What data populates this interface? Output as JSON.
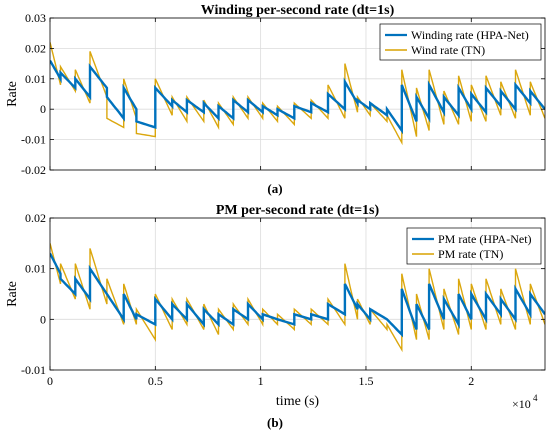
{
  "chart_data": [
    {
      "type": "line",
      "panel_caption": "(a)",
      "title": "Winding per-second rate (dt=1s)",
      "xlabel": "",
      "ylabel": "Rate",
      "xlim": [
        0,
        23500
      ],
      "ylim": [
        -0.02,
        0.03
      ],
      "yticks": [
        -0.02,
        -0.01,
        0,
        0.01,
        0.02,
        0.03
      ],
      "ytick_labels": [
        "-0.02",
        "-0.01",
        "0",
        "0.01",
        "0.02",
        "0.03"
      ],
      "xticks": [
        0,
        5000,
        10000,
        15000,
        20000
      ],
      "xtick_labels": [],
      "grid": true,
      "legend_position": "top-right",
      "segments": {
        "starts": [
          0,
          500,
          1200,
          1900,
          2700,
          3500,
          4100,
          5000,
          5800,
          6500,
          7300,
          8000,
          8700,
          9400,
          10100,
          10800,
          11600,
          12400,
          13200,
          14000,
          14600,
          15200,
          16000,
          16700,
          17400,
          18000,
          18700,
          19400,
          20000,
          20700,
          21400,
          22100,
          22800,
          23500
        ],
        "series_top_values": {
          "Winding rate (HPA-Net)": [
            0.016,
            0.012,
            0.01,
            0.014,
            0.004,
            0.007,
            -0.004,
            0.007,
            0.003,
            0.003,
            0.002,
            0.001,
            0.003,
            0.003,
            0.001,
            0.0,
            0.001,
            0.002,
            0.005,
            0.009,
            0.003,
            0.002,
            0.0,
            0.008,
            0.004,
            0.008,
            0.004,
            0.007,
            0.005,
            0.007,
            0.006,
            0.008,
            0.006
          ],
          "Wind rate (TN)": [
            0.022,
            0.014,
            0.013,
            0.019,
            -0.003,
            0.01,
            -0.008,
            0.01,
            0.004,
            0.004,
            0.003,
            0.002,
            0.004,
            0.004,
            0.002,
            0.001,
            0.002,
            0.003,
            0.008,
            0.015,
            0.004,
            0.002,
            -0.002,
            0.013,
            0.007,
            0.013,
            0.006,
            0.011,
            0.008,
            0.011,
            0.009,
            0.013,
            0.009
          ]
        },
        "series_bottom_values": {
          "Winding rate (HPA-Net)": [
            0.01,
            0.007,
            0.004,
            0.007,
            -0.003,
            0.0,
            -0.006,
            0.001,
            -0.001,
            -0.001,
            -0.003,
            -0.003,
            -0.001,
            -0.001,
            -0.002,
            -0.003,
            -0.001,
            -0.001,
            0.0,
            0.002,
            0.0,
            -0.002,
            -0.007,
            -0.004,
            -0.003,
            -0.001,
            -0.002,
            0.0,
            -0.001,
            0.001,
            0.0,
            0.002,
            0.0
          ],
          "Wind rate (TN)": [
            0.008,
            0.006,
            0.002,
            0.004,
            -0.006,
            -0.003,
            -0.009,
            -0.002,
            -0.004,
            -0.004,
            -0.006,
            -0.005,
            -0.003,
            -0.003,
            -0.004,
            -0.005,
            -0.003,
            -0.003,
            -0.003,
            -0.001,
            -0.002,
            -0.004,
            -0.011,
            -0.009,
            -0.007,
            -0.005,
            -0.005,
            -0.004,
            -0.004,
            -0.002,
            -0.003,
            -0.002,
            -0.003
          ]
        }
      },
      "series": [
        {
          "name": "Winding rate (HPA-Net)",
          "color": "#0072BD"
        },
        {
          "name": "Wind rate (TN)",
          "color": "#D9A200"
        }
      ]
    },
    {
      "type": "line",
      "panel_caption": "(b)",
      "title": "PM per-second rate (dt=1s)",
      "xlabel": "time (s)",
      "ylabel": "Rate",
      "xlim": [
        0,
        23500
      ],
      "ylim": [
        -0.01,
        0.02
      ],
      "yticks": [
        -0.01,
        0,
        0.01,
        0.02
      ],
      "ytick_labels": [
        "-0.01",
        "0",
        "0.01",
        "0.02"
      ],
      "xticks": [
        0,
        5000,
        10000,
        15000,
        20000
      ],
      "xtick_labels": [
        "0",
        "0.5",
        "1",
        "1.5",
        "2"
      ],
      "x_exponent_base": "×10",
      "x_exponent_power": "4",
      "grid": true,
      "legend_position": "top-right",
      "segments": {
        "starts": [
          0,
          500,
          1200,
          1900,
          2700,
          3500,
          4100,
          5000,
          5800,
          6500,
          7300,
          8000,
          8700,
          9400,
          10100,
          10800,
          11600,
          12400,
          13200,
          14000,
          14600,
          15200,
          16000,
          16700,
          17400,
          18000,
          18700,
          19400,
          20000,
          20700,
          21400,
          22100,
          22800,
          23500
        ],
        "series_top_values": {
          "PM rate (HPA-Net)": [
            0.013,
            0.008,
            0.008,
            0.01,
            0.005,
            0.005,
            0.001,
            0.004,
            0.003,
            0.003,
            0.002,
            0.001,
            0.002,
            0.003,
            0.001,
            0.0,
            0.001,
            0.001,
            0.003,
            0.007,
            0.003,
            0.002,
            0.0,
            0.006,
            0.003,
            0.007,
            0.004,
            0.005,
            0.005,
            0.005,
            0.004,
            0.006,
            0.005
          ],
          "PM rate (TN)": [
            0.015,
            0.011,
            0.011,
            0.014,
            0.008,
            0.007,
            0.002,
            0.005,
            0.004,
            0.004,
            0.003,
            0.002,
            0.003,
            0.004,
            0.002,
            0.001,
            0.002,
            0.002,
            0.004,
            0.011,
            0.004,
            0.002,
            -0.001,
            0.009,
            0.005,
            0.01,
            0.006,
            0.008,
            0.007,
            0.008,
            0.006,
            0.01,
            0.007
          ]
        },
        "series_bottom_values": {
          "PM rate (HPA-Net)": [
            0.009,
            0.005,
            0.004,
            0.005,
            0.0,
            0.0,
            -0.001,
            0.0,
            0.0,
            -0.001,
            -0.001,
            -0.001,
            0.0,
            0.0,
            0.0,
            -0.001,
            0.0,
            0.0,
            0.001,
            0.002,
            0.0,
            0.0,
            -0.003,
            -0.002,
            -0.002,
            0.0,
            -0.001,
            0.0,
            0.0,
            0.001,
            0.0,
            0.001,
            0.001
          ],
          "PM rate (TN)": [
            0.007,
            0.004,
            0.002,
            0.003,
            -0.001,
            -0.001,
            -0.004,
            -0.002,
            -0.001,
            -0.002,
            -0.003,
            -0.002,
            -0.001,
            -0.001,
            -0.001,
            -0.002,
            -0.001,
            -0.001,
            -0.001,
            0.0,
            -0.001,
            -0.002,
            -0.006,
            -0.004,
            -0.004,
            -0.002,
            -0.003,
            -0.002,
            -0.002,
            -0.001,
            -0.002,
            -0.001,
            -0.001
          ]
        }
      },
      "series": [
        {
          "name": "PM rate (HPA-Net)",
          "color": "#0072BD"
        },
        {
          "name": "PM rate (TN)",
          "color": "#D9A200"
        }
      ]
    }
  ]
}
